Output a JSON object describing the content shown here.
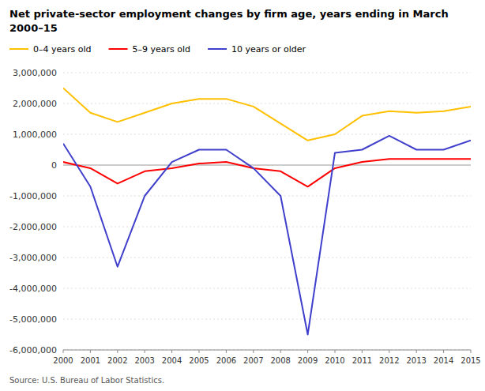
{
  "chart_data": {
    "type": "line",
    "title": "Net private-sector employment changes by firm age, years ending in March",
    "subtitle": "2000–15",
    "annotations": [
      "Source: U.S. Bureau of Labor Statistics."
    ],
    "x": [
      2000,
      2001,
      2002,
      2003,
      2004,
      2005,
      2006,
      2007,
      2008,
      2009,
      2010,
      2011,
      2012,
      2013,
      2014,
      2015
    ],
    "series": [
      {
        "name": "0–4 years old",
        "color": "#FFC000",
        "values": [
          2500000,
          1700000,
          1400000,
          1700000,
          2000000,
          2150000,
          2150000,
          1900000,
          1350000,
          800000,
          1000000,
          1600000,
          1750000,
          1700000,
          1750000,
          1900000
        ]
      },
      {
        "name": "5–9 years old",
        "color": "#FF0000",
        "values": [
          100000,
          -100000,
          -600000,
          -200000,
          -100000,
          50000,
          100000,
          -100000,
          -200000,
          -700000,
          -100000,
          100000,
          200000,
          200000,
          200000,
          200000
        ]
      },
      {
        "name": "10 years or older",
        "color": "#4040CC",
        "values": [
          700000,
          -700000,
          -3300000,
          -1000000,
          100000,
          500000,
          500000,
          -100000,
          -1000000,
          -5500000,
          400000,
          500000,
          950000,
          500000,
          500000,
          800000
        ]
      }
    ],
    "xlim": [
      2000,
      2015
    ],
    "xticks": [
      2000,
      2001,
      2002,
      2003,
      2004,
      2005,
      2006,
      2007,
      2008,
      2009,
      2010,
      2011,
      2012,
      2013,
      2014,
      2015
    ],
    "ylim": [
      -6000000,
      3000000
    ],
    "yticks": [
      {
        "value": -6000000,
        "label": "-6,000,000"
      },
      {
        "value": -5000000,
        "label": "-5,000,000"
      },
      {
        "value": -4000000,
        "label": "-4,000,000"
      },
      {
        "value": -3000000,
        "label": "-3,000,000"
      },
      {
        "value": -2000000,
        "label": "-2,000,000"
      },
      {
        "value": -1000000,
        "label": "-1,000,000"
      },
      0,
      {
        "value": 1000000,
        "label": "1,000,000"
      },
      {
        "value": 2000000,
        "label": "2,000,000"
      },
      {
        "value": 3000000,
        "label": "3,000,000"
      }
    ],
    "grid": true,
    "legend": "top"
  }
}
